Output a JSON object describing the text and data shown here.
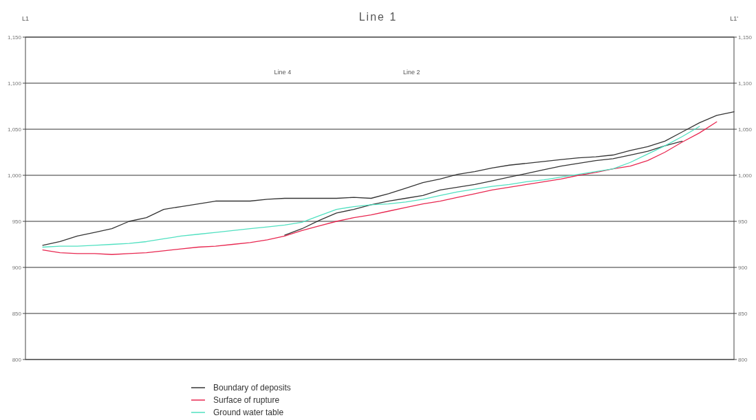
{
  "chart_data": {
    "type": "line",
    "title": "Line 1",
    "annotations": [
      "L1",
      "L1'",
      "Line 4",
      "Line 2"
    ],
    "categories": [
      null,
      null,
      null,
      null,
      null,
      null,
      null,
      null,
      null,
      null,
      null,
      null,
      null,
      null,
      null,
      null,
      null,
      null,
      null,
      null,
      null,
      null,
      null,
      null,
      null,
      null,
      null,
      null,
      null,
      null,
      null,
      null,
      null,
      null,
      null,
      null,
      null,
      null,
      null,
      null,
      null,
      null
    ],
    "series": [
      {
        "name": "Boundary of deposits",
        "color": "#333333",
        "values": [
          null,
          924,
          928,
          934,
          938,
          942,
          950,
          954,
          963,
          966,
          969,
          972,
          972,
          972,
          974,
          975,
          975,
          975,
          975,
          976,
          975,
          980,
          986,
          992,
          996,
          1001,
          1004,
          1008,
          1011,
          1013,
          1015,
          1017,
          1019,
          1020,
          1022,
          1027,
          1031,
          1037,
          1047,
          1057,
          1065,
          1069
        ]
      },
      {
        "color": "#333333",
        "values": [
          null,
          null,
          null,
          null,
          null,
          null,
          null,
          null,
          null,
          null,
          null,
          null,
          null,
          null,
          null,
          935,
          942,
          951,
          959,
          963,
          968,
          972,
          975,
          978,
          984,
          987,
          990,
          994,
          998,
          1002,
          1006,
          1010,
          1013,
          1016,
          1018,
          1022,
          1026,
          1032,
          1037,
          null,
          null,
          null
        ]
      },
      {
        "name": "Surface of rupture",
        "color": "#e8264f",
        "values": [
          null,
          919,
          916,
          915,
          915,
          914,
          915,
          916,
          918,
          920,
          922,
          923,
          925,
          927,
          930,
          934,
          940,
          945,
          950,
          954,
          957,
          961,
          965,
          969,
          972,
          976,
          980,
          984,
          987,
          990,
          993,
          996,
          1000,
          1003,
          1007,
          1010,
          1016,
          1025,
          1036,
          1046,
          1058,
          null
        ]
      },
      {
        "name": "Ground water table",
        "color": "#4fe0c0",
        "values": [
          null,
          922,
          923,
          923,
          924,
          925,
          926,
          928,
          931,
          934,
          936,
          938,
          940,
          942,
          944,
          946,
          949,
          956,
          963,
          966,
          968,
          969,
          971,
          974,
          978,
          982,
          985,
          988,
          990,
          993,
          995,
          998,
          1001,
          1004,
          1007,
          1014,
          1023,
          1032,
          1042,
          1053,
          null,
          null
        ]
      }
    ],
    "ylim": [
      800,
      1150
    ],
    "yticks": [
      800,
      850,
      900,
      950,
      {
        "value": 1000,
        "label": "1,000"
      },
      {
        "value": 1050,
        "label": "1,050"
      },
      {
        "value": 1100,
        "label": "1,100"
      },
      {
        "value": 1150,
        "label": "1,150"
      }
    ],
    "y2lim": [
      800,
      1150
    ],
    "y2ticks": [
      800,
      850,
      900,
      950,
      {
        "value": 1000,
        "label": "1,000"
      },
      {
        "value": 1050,
        "label": "1,050"
      },
      {
        "value": 1100,
        "label": "1,100"
      },
      {
        "value": 1150,
        "label": "1,150"
      }
    ],
    "grid": "y",
    "legend": "bottom"
  }
}
